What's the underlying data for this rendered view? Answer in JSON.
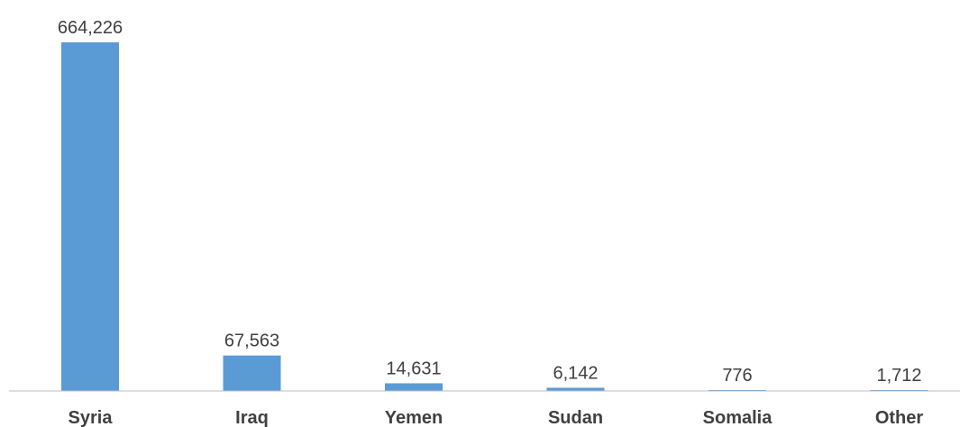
{
  "chart_data": {
    "type": "bar",
    "categories": [
      "Syria",
      "Iraq",
      "Yemen",
      "Sudan",
      "Somalia",
      "Other"
    ],
    "values": [
      664226,
      67563,
      14631,
      6142,
      776,
      1712
    ],
    "value_labels": [
      "664,226",
      "67,563",
      "14,631",
      "6,142",
      "776",
      "1,712"
    ],
    "ylim": [
      0,
      664226
    ],
    "grid": false,
    "legend": "none",
    "colors": {
      "bar": "#5b9bd5",
      "axis": "#bfbfbf",
      "text": "#404040"
    }
  }
}
